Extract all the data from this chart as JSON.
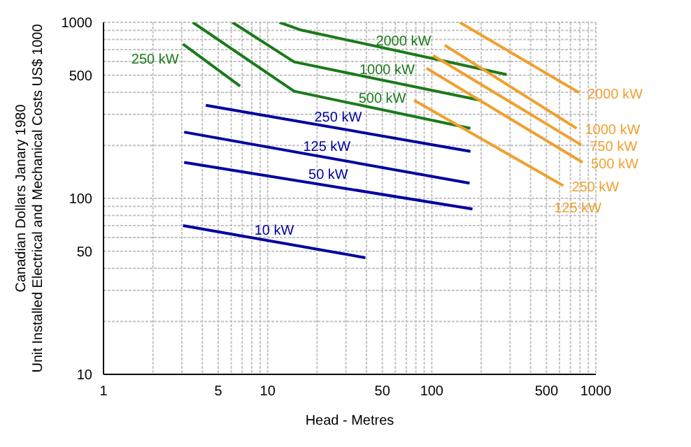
{
  "chart_data": {
    "type": "line",
    "xlabel": "Head - Metres",
    "ylabel": "Canadian Dollars Janary 1980\nUnit Installed Electrical and Mechanical Costs US$ 1000",
    "log": "xy",
    "grid": true,
    "marker": "none",
    "line_style": "solid",
    "xlim": [
      1,
      1000
    ],
    "ylim": [
      10,
      1000
    ],
    "xticks": [
      1,
      {
        "value": 2,
        "label": null
      },
      {
        "value": 3,
        "label": null
      },
      {
        "value": 4,
        "label": null
      },
      5,
      {
        "value": 6,
        "label": null
      },
      {
        "value": 7,
        "label": null
      },
      {
        "value": 8,
        "label": null
      },
      {
        "value": 9,
        "label": null
      },
      10,
      {
        "value": 20,
        "label": null
      },
      {
        "value": 30,
        "label": null
      },
      {
        "value": 40,
        "label": null
      },
      50,
      {
        "value": 60,
        "label": null
      },
      {
        "value": 70,
        "label": null
      },
      {
        "value": 80,
        "label": null
      },
      {
        "value": 90,
        "label": null
      },
      100,
      {
        "value": 200,
        "label": null
      },
      {
        "value": 300,
        "label": null
      },
      {
        "value": 400,
        "label": null
      },
      500,
      {
        "value": 600,
        "label": null
      },
      {
        "value": 700,
        "label": null
      },
      {
        "value": 800,
        "label": null
      },
      {
        "value": 900,
        "label": null
      },
      1000
    ],
    "yticks": [
      10,
      {
        "value": 20,
        "label": null
      },
      {
        "value": 30,
        "label": null
      },
      {
        "value": 40,
        "label": null
      },
      50,
      {
        "value": 60,
        "label": null
      },
      {
        "value": 70,
        "label": null
      },
      {
        "value": 80,
        "label": null
      },
      {
        "value": 90,
        "label": null
      },
      100,
      {
        "value": 200,
        "label": null
      },
      {
        "value": 300,
        "label": null
      },
      {
        "value": 400,
        "label": null
      },
      500,
      {
        "value": 600,
        "label": null
      },
      {
        "value": 700,
        "label": null
      },
      {
        "value": 800,
        "label": null
      },
      {
        "value": 900,
        "label": null
      },
      1000
    ],
    "series": [
      {
        "name": "2000 kW",
        "color": "#1a7a1a",
        "x": [
          11.8,
          15.8,
          286
        ],
        "values": [
          1000,
          907,
          505
        ]
      },
      {
        "name": "1000 kW",
        "color": "#1a7a1a",
        "x": [
          6.1,
          14.5,
          197
        ],
        "values": [
          1000,
          596,
          361
        ]
      },
      {
        "name": "500 kW",
        "color": "#1a7a1a",
        "x": [
          3.5,
          14.5,
          172
        ],
        "values": [
          1000,
          406,
          250
        ]
      },
      {
        "name": "250 kW",
        "color": "#1a7a1a",
        "x": [
          3.05,
          6.8
        ],
        "values": [
          753,
          434
        ]
      },
      {
        "name": "250 kW",
        "color": "#0000a0",
        "x": [
          4.2,
          172
        ],
        "values": [
          338,
          185
        ]
      },
      {
        "name": "125 kW",
        "color": "#0000a0",
        "x": [
          3.1,
          170
        ],
        "values": [
          238,
          122
        ]
      },
      {
        "name": "50 kW",
        "color": "#0000a0",
        "x": [
          3.1,
          177
        ],
        "values": [
          160,
          87
        ]
      },
      {
        "name": "10 kW",
        "color": "#0000a0",
        "x": [
          3.05,
          39.4
        ],
        "values": [
          70,
          46
        ]
      },
      {
        "name": "2000 kW",
        "color": "#f0a030",
        "x": [
          148,
          789
        ],
        "values": [
          1000,
          399
        ]
      },
      {
        "name": "1000 kW",
        "color": "#f0a030",
        "x": [
          120,
          763
        ],
        "values": [
          741,
          250
        ]
      },
      {
        "name": "750 kW",
        "color": "#f0a030",
        "x": [
          102,
          816
        ],
        "values": [
          648,
          201
        ]
      },
      {
        "name": "500 kW",
        "color": "#f0a030",
        "x": [
          93,
          830
        ],
        "values": [
          548,
          160
        ]
      },
      {
        "name": "250 kW",
        "color": "#f0a030",
        "x": [
          78,
          633
        ],
        "values": [
          361,
          118
        ]
      }
    ],
    "annotations": [
      "125 kW"
    ]
  }
}
